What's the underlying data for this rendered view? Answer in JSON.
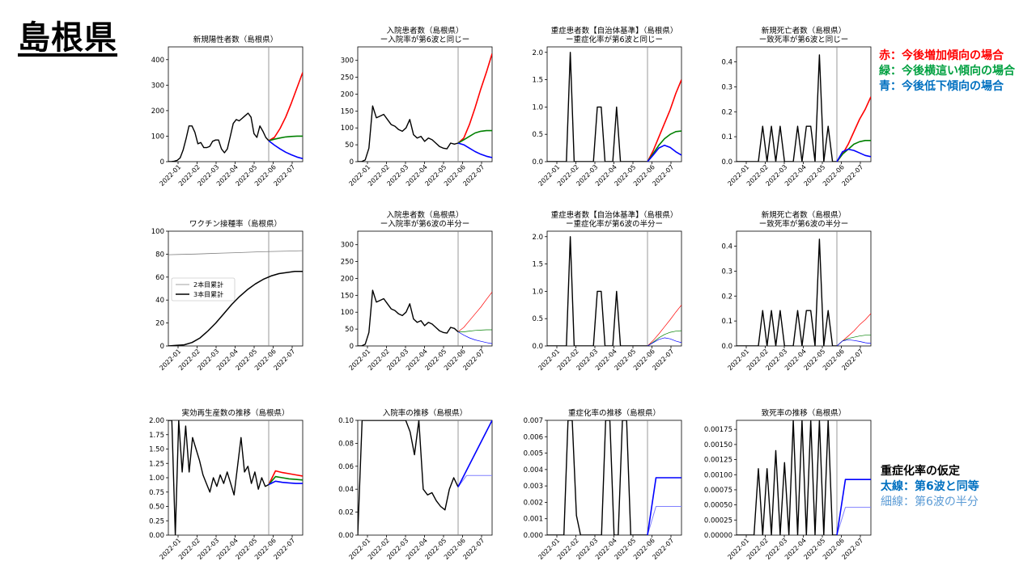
{
  "page": {
    "title": "島根県"
  },
  "legend": [
    {
      "text": "赤：今後増加傾向の場合",
      "color": "#ff0000"
    },
    {
      "text": "緑：今後横這い傾向の場合",
      "color": "#00a040"
    },
    {
      "text": "青：今後低下傾向の場合",
      "color": "#0070c0"
    }
  ],
  "assumption": {
    "heading": "重症化率の仮定",
    "thick": "太線：第6波と同等",
    "thin": "細線：第6波の半分",
    "heading_color": "#000000",
    "thick_color": "#0070c0",
    "thin_color": "#5b9bd5"
  },
  "colors": {
    "actual": "#000000",
    "up": "#ff0000",
    "flat": "#008000",
    "down": "#0000ff",
    "vline": "#808080"
  },
  "chart_data": [
    {
      "type": "line",
      "title": [
        "新規陽性者数（島根県）"
      ],
      "ylim": [
        0,
        450
      ],
      "yticks": [
        "0",
        "100",
        "200",
        "300",
        "400"
      ],
      "xticks": [
        "2022-01",
        "2022-02",
        "2022-03",
        "2022-04",
        "2022-05",
        "2022-06",
        "2022-07"
      ],
      "actual": [
        0,
        0,
        2,
        5,
        15,
        45,
        90,
        140,
        140,
        115,
        70,
        75,
        55,
        55,
        60,
        80,
        85,
        85,
        50,
        35,
        50,
        100,
        150,
        165,
        160,
        170,
        180,
        190,
        175,
        110,
        95,
        140,
        120,
        95,
        82
      ],
      "up": [
        82,
        95,
        130,
        175,
        230,
        290,
        350
      ],
      "flat": [
        82,
        88,
        93,
        97,
        99,
        100,
        100
      ],
      "down": [
        82,
        65,
        50,
        37,
        27,
        18,
        12
      ],
      "thin": false
    },
    {
      "type": "line",
      "title": [
        "入院患者数（島根県）",
        "ー入院率が第6波と同じー"
      ],
      "ylim": [
        0,
        340
      ],
      "yticks": [
        "0",
        "50",
        "100",
        "150",
        "200",
        "250",
        "300"
      ],
      "xticks": [
        "2022-01",
        "2022-02",
        "2022-03",
        "2022-04",
        "2022-05",
        "2022-06",
        "2022-07"
      ],
      "actual": [
        0,
        0,
        5,
        40,
        165,
        130,
        135,
        140,
        125,
        110,
        105,
        95,
        90,
        100,
        125,
        80,
        70,
        75,
        60,
        70,
        65,
        55,
        45,
        40,
        38,
        55,
        52,
        55
      ],
      "up": [
        55,
        70,
        110,
        160,
        215,
        265,
        320
      ],
      "flat": [
        55,
        65,
        75,
        85,
        90,
        92,
        92
      ],
      "down": [
        55,
        50,
        40,
        30,
        22,
        16,
        12
      ],
      "thin": false
    },
    {
      "type": "line",
      "title": [
        "重症患者数【自治体基準】（島根県）",
        "ー重症化率が第6波と同じー"
      ],
      "ylim": [
        0,
        2.1
      ],
      "yticks": [
        "0.0",
        "0.5",
        "1.0",
        "1.5",
        "2.0"
      ],
      "xticks": [
        "2022-01",
        "2022-02",
        "2022-03",
        "2022-04",
        "2022-05",
        "2022-06",
        "2022-07"
      ],
      "actual": [
        0,
        0,
        0,
        0,
        0,
        0,
        2,
        0,
        0,
        0,
        0,
        0,
        0,
        1,
        1,
        0,
        0,
        0,
        1,
        0,
        0,
        0,
        0,
        0,
        0,
        0,
        0
      ],
      "up": [
        0,
        0.2,
        0.45,
        0.7,
        0.95,
        1.25,
        1.5
      ],
      "flat": [
        0,
        0.15,
        0.3,
        0.42,
        0.5,
        0.55,
        0.56
      ],
      "down": [
        0,
        0.12,
        0.25,
        0.3,
        0.26,
        0.18,
        0.12
      ],
      "thin": false
    },
    {
      "type": "line",
      "title": [
        "新規死亡者数（島根県）",
        "ー致死率が第6波と同じー"
      ],
      "ylim": [
        0,
        0.46
      ],
      "yticks": [
        "0.0",
        "0.1",
        "0.2",
        "0.3",
        "0.4"
      ],
      "xticks": [
        "2022-01",
        "2022-02",
        "2022-03",
        "2022-04",
        "2022-05",
        "2022-06",
        "2022-07"
      ],
      "actual": [
        0,
        0,
        0,
        0,
        0,
        0,
        0.142,
        0,
        0.142,
        0,
        0.142,
        0,
        0,
        0,
        0.142,
        0,
        0.142,
        0.142,
        0,
        0.428,
        0,
        0.142,
        0,
        0
      ],
      "up": [
        0,
        0.03,
        0.07,
        0.12,
        0.17,
        0.21,
        0.26
      ],
      "flat": [
        0,
        0.03,
        0.05,
        0.07,
        0.08,
        0.085,
        0.085
      ],
      "down": [
        0,
        0.04,
        0.05,
        0.045,
        0.035,
        0.025,
        0.02
      ],
      "thin": false
    },
    {
      "type": "vacc",
      "title": [
        "ワクチン接種率（島根県）"
      ],
      "ylim": [
        0,
        100
      ],
      "yticks": [
        "0",
        "20",
        "40",
        "60",
        "80",
        "100"
      ],
      "xticks": [
        "2022-01",
        "2022-02",
        "2022-03",
        "2022-04",
        "2022-05",
        "2022-06",
        "2022-07"
      ],
      "dose2": [
        79.5,
        79.8,
        80.1,
        80.5,
        80.9,
        81.3,
        81.7,
        82.1,
        82.4,
        82.7,
        83.0
      ],
      "dose3": [
        0,
        0.5,
        1,
        3,
        7,
        13,
        20,
        28,
        36,
        43,
        49,
        54,
        58,
        61,
        63,
        64,
        65,
        65
      ],
      "series_names": [
        "2本目累計",
        "3本目累計"
      ]
    },
    {
      "type": "line",
      "title": [
        "入院患者数（島根県）",
        "ー入院率が第6波の半分ー"
      ],
      "ylim": [
        0,
        340
      ],
      "yticks": [
        "0",
        "50",
        "100",
        "150",
        "200",
        "250",
        "300"
      ],
      "xticks": [
        "2022-01",
        "2022-02",
        "2022-03",
        "2022-04",
        "2022-05",
        "2022-06",
        "2022-07"
      ],
      "actual": [
        0,
        0,
        5,
        40,
        165,
        130,
        135,
        140,
        125,
        110,
        105,
        95,
        90,
        100,
        125,
        80,
        70,
        75,
        60,
        70,
        65,
        55,
        45,
        40,
        38,
        55,
        52,
        42
      ],
      "up": [
        42,
        55,
        75,
        95,
        115,
        138,
        160
      ],
      "flat": [
        42,
        42,
        44,
        46,
        47,
        48,
        48
      ],
      "down": [
        42,
        32,
        24,
        18,
        14,
        10,
        7
      ],
      "thin": true
    },
    {
      "type": "line",
      "title": [
        "重症患者数【自治体基準】（島根県）",
        "ー重症化率が第6波の半分ー"
      ],
      "ylim": [
        0,
        2.1
      ],
      "yticks": [
        "0.0",
        "0.5",
        "1.0",
        "1.5",
        "2.0"
      ],
      "xticks": [
        "2022-01",
        "2022-02",
        "2022-03",
        "2022-04",
        "2022-05",
        "2022-06",
        "2022-07"
      ],
      "actual": [
        0,
        0,
        0,
        0,
        0,
        0,
        2,
        0,
        0,
        0,
        0,
        0,
        0,
        1,
        1,
        0,
        0,
        0,
        1,
        0,
        0,
        0,
        0,
        0,
        0,
        0,
        0
      ],
      "up": [
        0,
        0.1,
        0.22,
        0.35,
        0.48,
        0.62,
        0.75
      ],
      "flat": [
        0,
        0.07,
        0.15,
        0.21,
        0.25,
        0.27,
        0.28
      ],
      "down": [
        0,
        0.06,
        0.12,
        0.15,
        0.13,
        0.09,
        0.06
      ],
      "thin": true
    },
    {
      "type": "line",
      "title": [
        "新規死亡者数（島根県）",
        "ー致死率が第6波の半分ー"
      ],
      "ylim": [
        0,
        0.46
      ],
      "yticks": [
        "0.0",
        "0.1",
        "0.2",
        "0.3",
        "0.4"
      ],
      "xticks": [
        "2022-01",
        "2022-02",
        "2022-03",
        "2022-04",
        "2022-05",
        "2022-06",
        "2022-07"
      ],
      "actual": [
        0,
        0,
        0,
        0,
        0,
        0,
        0.142,
        0,
        0.142,
        0,
        0.142,
        0,
        0,
        0,
        0.142,
        0,
        0.142,
        0.142,
        0,
        0.428,
        0,
        0.142,
        0,
        0
      ],
      "up": [
        0,
        0.02,
        0.04,
        0.06,
        0.085,
        0.105,
        0.13
      ],
      "flat": [
        0,
        0.02,
        0.03,
        0.035,
        0.04,
        0.043,
        0.043
      ],
      "down": [
        0,
        0.02,
        0.025,
        0.022,
        0.018,
        0.013,
        0.01
      ],
      "thin": true
    },
    {
      "type": "line",
      "title": [
        "実効再生産数の推移（島根県）"
      ],
      "ylim": [
        0,
        2.0
      ],
      "yticks": [
        "0.00",
        "0.25",
        "0.50",
        "0.75",
        "1.00",
        "1.25",
        "1.50",
        "1.75",
        "2.00"
      ],
      "xticks": [
        "2022-01",
        "2022-02",
        "2022-03",
        "2022-04",
        "2022-05",
        "2022-06",
        "2022-07"
      ],
      "actual": [
        2,
        2,
        0,
        2,
        1.1,
        1.9,
        1.1,
        1.7,
        1.5,
        1.3,
        1.05,
        0.9,
        0.75,
        1.0,
        0.85,
        1.05,
        0.9,
        1.1,
        0.9,
        0.7,
        1.2,
        1.7,
        1.1,
        1.2,
        0.9,
        1.1,
        0.8,
        1.0,
        0.85,
        0.88
      ],
      "up": [
        0.88,
        1.12,
        1.09,
        1.07,
        1.05,
        1.03
      ],
      "flat": [
        0.88,
        1.02,
        1.0,
        0.98,
        0.97,
        0.96
      ],
      "down": [
        0.88,
        0.94,
        0.92,
        0.91,
        0.9,
        0.9
      ],
      "thin": false
    },
    {
      "type": "line",
      "title": [
        "入院率の推移（島根県）"
      ],
      "ylim": [
        0,
        0.1
      ],
      "yticks": [
        "0.00",
        "0.02",
        "0.04",
        "0.06",
        "0.08",
        "0.10"
      ],
      "xticks": [
        "2022-01",
        "2022-02",
        "2022-03",
        "2022-04",
        "2022-05",
        "2022-06",
        "2022-07"
      ],
      "actual": [
        0,
        0.1,
        0.1,
        0.1,
        0.1,
        0.1,
        0.1,
        0.1,
        0.1,
        0.1,
        0.1,
        0.1,
        0.09,
        0.07,
        0.1,
        0.04,
        0.035,
        0.037,
        0.03,
        0.025,
        0.022,
        0.04,
        0.05,
        0.042
      ],
      "thick": [
        0.042,
        0.1
      ],
      "thin_line": [
        0.042,
        0.052,
        0.052,
        0.052,
        0.052
      ],
      "assumption": true
    },
    {
      "type": "line",
      "title": [
        "重症化率の推移（島根県）"
      ],
      "ylim": [
        0,
        0.007
      ],
      "yticks": [
        "0.000",
        "0.001",
        "0.002",
        "0.003",
        "0.004",
        "0.005",
        "0.006",
        "0.007"
      ],
      "xticks": [
        "2022-01",
        "2022-02",
        "2022-03",
        "2022-04",
        "2022-05",
        "2022-06",
        "2022-07"
      ],
      "actual": [
        0,
        0,
        0,
        0,
        0,
        0.007,
        0.007,
        0.0012,
        0,
        0,
        0,
        0,
        0,
        0,
        0.007,
        0.007,
        0,
        0,
        0.007,
        0.007,
        0,
        0,
        0,
        0,
        0
      ],
      "thick": [
        0,
        0.0035,
        0.0035,
        0.0035,
        0.0035
      ],
      "thin_line": [
        0,
        0.00175,
        0.00175,
        0.00175,
        0.00175
      ],
      "assumption": true
    },
    {
      "type": "line",
      "title": [
        "致死率の推移（島根県）"
      ],
      "ylim": [
        0,
        0.0019
      ],
      "yticks": [
        "0.00000",
        "0.00025",
        "0.00050",
        "0.00075",
        "0.00100",
        "0.00125",
        "0.00150",
        "0.00175"
      ],
      "xticks": [
        "2022-01",
        "2022-02",
        "2022-03",
        "2022-04",
        "2022-05",
        "2022-06",
        "2022-07"
      ],
      "actual": [
        0,
        0,
        0,
        0,
        0,
        0.0011,
        0,
        0.0011,
        0,
        0.0014,
        0,
        0.0012,
        0,
        0.0019,
        0,
        0.0019,
        0,
        0.0019,
        0,
        0.0019,
        0,
        0.0019,
        0,
        0
      ],
      "thick": [
        0,
        0.00092,
        0.00092,
        0.00092,
        0.00092
      ],
      "thin_line": [
        0,
        0.00046,
        0.00046,
        0.00046,
        0.00046
      ],
      "assumption": true
    }
  ]
}
